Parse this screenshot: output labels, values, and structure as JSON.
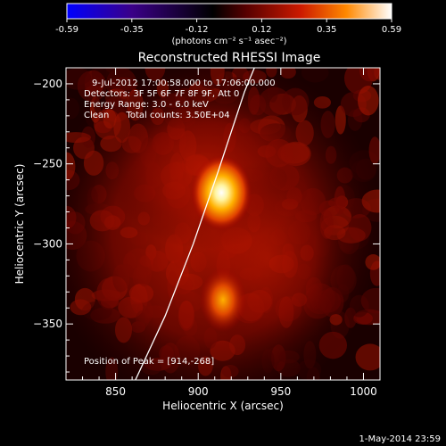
{
  "chart_data": {
    "type": "heatmap",
    "title": "Reconstructed RHESSI Image",
    "xlabel": "Heliocentric X (arcsec)",
    "ylabel": "Heliocentric Y (arcsec)",
    "xlim": [
      820,
      1010
    ],
    "ylim": [
      -385,
      -190
    ],
    "x_ticks": [
      850,
      900,
      950,
      1000
    ],
    "y_ticks": [
      -200,
      -250,
      -300,
      -350
    ],
    "colorbar": {
      "ticks": [
        "-0.59",
        "-0.35",
        "-0.12",
        "0.12",
        "0.35",
        "0.59"
      ],
      "range": [
        -0.59,
        0.59
      ],
      "unit_label": "(photons cm⁻² s⁻¹ asec⁻²)"
    },
    "annotations": [
      "9-Jul-2012 17:00:58.000 to 17:06:00.000",
      "Detectors: 3F 5F 6F 7F 8F 9F, Att 0",
      "Energy Range: 3.0 - 6.0 keV",
      "Clean      Total counts: 3.50E+04"
    ],
    "peak_label": "Position of Peak = [914,-268]",
    "sources": [
      {
        "x": 914,
        "y": -268,
        "peak": 0.59
      },
      {
        "x": 915,
        "y": -335,
        "peak": 0.4
      }
    ],
    "limb_curve": [
      [
        862,
        -385
      ],
      [
        880,
        -345
      ],
      [
        897,
        -300
      ],
      [
        912,
        -255
      ],
      [
        928,
        -205
      ],
      [
        934,
        -190
      ]
    ],
    "footer": "1-May-2014 23:59"
  }
}
